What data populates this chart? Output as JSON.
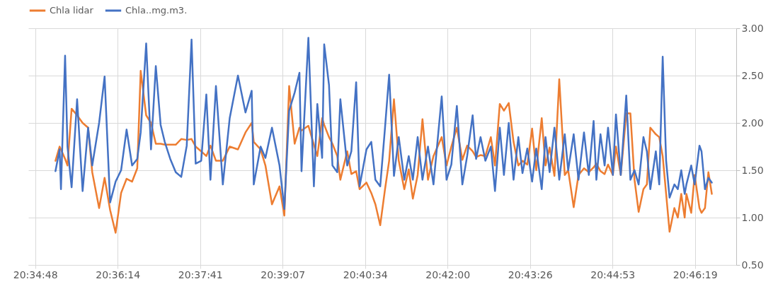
{
  "chart_data": {
    "type": "line",
    "x": [
      20.5859,
      20.5871,
      20.5875,
      20.5887,
      20.5894,
      20.5906,
      20.5922,
      20.5938,
      20.5954,
      20.5966,
      20.5986,
      20.6002,
      20.6018,
      20.6034,
      20.605,
      20.6066,
      20.6082,
      20.6097,
      20.6107,
      20.6123,
      20.6137,
      20.6151,
      20.6165,
      20.6177,
      20.6193,
      20.6209,
      20.6225,
      20.6241,
      20.6255,
      20.6267,
      20.6283,
      20.6298,
      20.631,
      20.6326,
      20.6346,
      20.6366,
      20.639,
      20.6412,
      20.643,
      20.6436,
      20.6456,
      20.647,
      20.6489,
      20.6511,
      20.6525,
      20.6539,
      20.6555,
      20.6569,
      20.6575,
      20.6595,
      20.6611,
      20.6621,
      20.6635,
      20.6641,
      20.6655,
      20.6665,
      20.6679,
      20.6688,
      20.6708,
      20.672,
      20.6734,
      20.6744,
      20.6764,
      20.6778,
      20.679,
      20.6804,
      20.6818,
      20.683,
      20.6844,
      20.6858,
      20.6874,
      20.6887,
      20.6899,
      20.6913,
      20.6927,
      20.6943,
      20.6959,
      20.6983,
      20.6997,
      20.7011,
      20.7027,
      20.7043,
      20.7057,
      20.7073,
      20.7083,
      20.7096,
      20.711,
      20.7126,
      20.7138,
      20.7152,
      20.7164,
      20.7178,
      20.7192,
      20.7206,
      20.7218,
      20.7232,
      20.7246,
      20.7258,
      20.7274,
      20.7285,
      20.7297,
      20.7311,
      20.7325,
      20.7341,
      20.7351,
      20.7367,
      20.7381,
      20.7397,
      20.7411,
      20.7425,
      20.7433,
      20.7445,
      20.7457,
      20.7467,
      20.7481,
      20.749,
      20.7504,
      20.752,
      20.7532,
      20.7544,
      20.7556,
      20.757,
      20.758,
      20.759,
      20.7606,
      20.7616,
      20.7626,
      20.7636,
      20.7646,
      20.766,
      20.767,
      20.768,
      20.769,
      20.7695,
      20.7709,
      20.7719,
      20.7733,
      20.7739,
      20.7749,
      20.7759,
      20.7769
    ],
    "series": [
      {
        "name": "Chla lidar",
        "color": "#ed7d31",
        "values": [
          1.6,
          1.75,
          1.72,
          1.62,
          1.55,
          2.15,
          2.08,
          2.0,
          1.95,
          1.48,
          1.1,
          1.42,
          1.08,
          0.84,
          1.26,
          1.41,
          1.38,
          1.52,
          2.55,
          2.08,
          2.0,
          1.78,
          1.78,
          1.77,
          1.77,
          1.77,
          1.83,
          1.82,
          1.83,
          1.75,
          1.7,
          1.65,
          1.76,
          1.6,
          1.6,
          1.75,
          1.72,
          1.9,
          2.0,
          1.8,
          1.72,
          1.55,
          1.14,
          1.33,
          1.02,
          2.39,
          1.78,
          1.95,
          1.92,
          1.97,
          1.77,
          1.65,
          2.05,
          1.98,
          1.85,
          1.78,
          1.65,
          1.4,
          1.7,
          1.46,
          1.49,
          1.3,
          1.37,
          1.26,
          1.14,
          0.92,
          1.3,
          1.6,
          2.25,
          1.6,
          1.3,
          1.51,
          1.2,
          1.45,
          2.04,
          1.4,
          1.65,
          1.85,
          1.55,
          1.75,
          1.95,
          1.61,
          1.76,
          1.7,
          1.64,
          1.66,
          1.65,
          1.85,
          1.55,
          2.2,
          2.13,
          2.21,
          1.8,
          1.55,
          1.6,
          1.56,
          1.94,
          1.5,
          2.05,
          1.55,
          1.74,
          1.44,
          2.46,
          1.45,
          1.5,
          1.11,
          1.45,
          1.52,
          1.48,
          1.53,
          1.57,
          1.49,
          1.46,
          1.56,
          1.45,
          1.75,
          1.45,
          2.1,
          2.1,
          1.4,
          1.06,
          1.3,
          1.35,
          1.95,
          1.88,
          1.85,
          1.65,
          1.25,
          0.85,
          1.1,
          1.0,
          1.25,
          1.0,
          1.25,
          1.05,
          1.45,
          1.1,
          1.05,
          1.1,
          1.48,
          1.25
        ]
      },
      {
        "name": "Chla..mg.m3.",
        "color": "#4472c4",
        "values": [
          1.49,
          1.72,
          1.3,
          2.71,
          1.75,
          1.32,
          2.25,
          1.28,
          1.95,
          1.55,
          2.0,
          2.49,
          1.16,
          1.38,
          1.5,
          1.93,
          1.55,
          1.62,
          1.9,
          2.84,
          1.72,
          2.6,
          1.98,
          1.8,
          1.62,
          1.48,
          1.43,
          1.76,
          2.88,
          1.57,
          1.6,
          2.3,
          1.4,
          2.39,
          1.35,
          2.05,
          2.5,
          2.11,
          2.34,
          1.35,
          1.75,
          1.63,
          1.95,
          1.55,
          1.09,
          2.13,
          2.32,
          2.53,
          1.49,
          2.9,
          1.33,
          2.2,
          1.63,
          2.83,
          2.4,
          1.55,
          1.48,
          2.25,
          1.55,
          1.7,
          2.43,
          1.33,
          1.72,
          1.8,
          1.4,
          1.33,
          1.95,
          2.51,
          1.44,
          1.85,
          1.4,
          1.65,
          1.4,
          1.85,
          1.4,
          1.75,
          1.35,
          2.28,
          1.4,
          1.56,
          2.18,
          1.35,
          1.65,
          2.08,
          1.62,
          1.85,
          1.6,
          1.75,
          1.28,
          1.95,
          1.45,
          2.0,
          1.4,
          1.85,
          1.47,
          1.73,
          1.38,
          1.73,
          1.3,
          1.85,
          1.48,
          1.95,
          1.4,
          1.88,
          1.5,
          1.88,
          1.4,
          1.9,
          1.45,
          2.02,
          1.4,
          1.88,
          1.55,
          1.95,
          1.45,
          2.09,
          1.45,
          2.29,
          1.4,
          1.5,
          1.35,
          1.85,
          1.7,
          1.3,
          1.7,
          1.35,
          2.7,
          1.6,
          1.21,
          1.35,
          1.3,
          1.5,
          1.25,
          1.35,
          1.55,
          1.35,
          1.76,
          1.7,
          1.3,
          1.42,
          1.37
        ]
      }
    ],
    "xlim": [
      20.578,
      20.784
    ],
    "xticks": [
      {
        "value": 20.58,
        "label": "20:34:48"
      },
      {
        "value": 20.604,
        "label": "20:36:14"
      },
      {
        "value": 20.628,
        "label": "20:37:41"
      },
      {
        "value": 20.652,
        "label": "20:39:07"
      },
      {
        "value": 20.676,
        "label": "20:40:34"
      },
      {
        "value": 20.7,
        "label": "20:42:00"
      },
      {
        "value": 20.724,
        "label": "20:43:26"
      },
      {
        "value": 20.748,
        "label": "20:44:53"
      },
      {
        "value": 20.772,
        "label": "20:46:19"
      }
    ],
    "ylim": [
      0.5,
      3.0
    ],
    "yticks": [
      {
        "value": 0.5,
        "label": "0.50"
      },
      {
        "value": 1.0,
        "label": "1.00"
      },
      {
        "value": 1.5,
        "label": "1.50"
      },
      {
        "value": 2.0,
        "label": "2.00"
      },
      {
        "value": 2.5,
        "label": "2.50"
      },
      {
        "value": 3.0,
        "label": "3.00"
      }
    ],
    "legend": "top",
    "grid": true
  }
}
